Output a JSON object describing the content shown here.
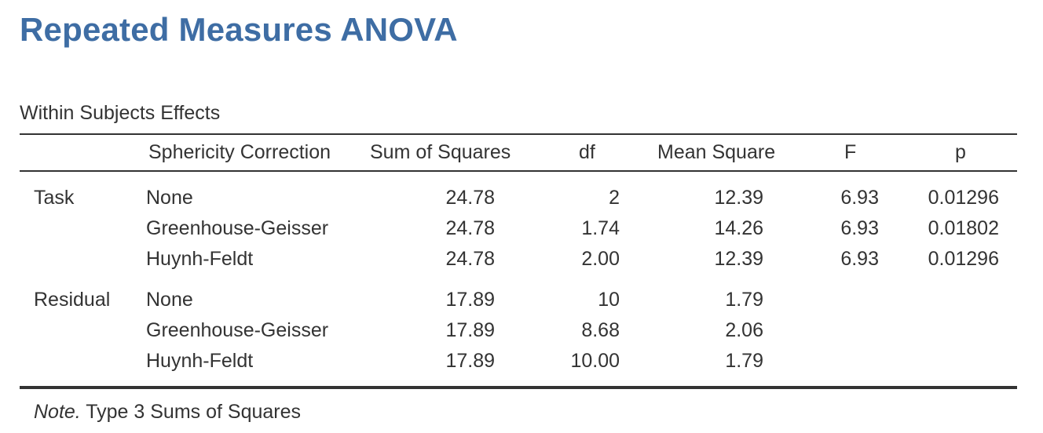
{
  "title": "Repeated Measures ANOVA",
  "table": {
    "caption": "Within Subjects Effects",
    "columns": {
      "term": "",
      "sphericity": "Sphericity Correction",
      "ss": "Sum of Squares",
      "df": "df",
      "ms": "Mean Square",
      "f": "F",
      "p": "p"
    },
    "rows": [
      {
        "term": "Task",
        "sphericity": "None",
        "ss": "24.78",
        "df": "2",
        "ms": "12.39",
        "f": "6.93",
        "p": "0.01296"
      },
      {
        "term": "",
        "sphericity": "Greenhouse-Geisser",
        "ss": "24.78",
        "df": "1.74",
        "ms": "14.26",
        "f": "6.93",
        "p": "0.01802"
      },
      {
        "term": "",
        "sphericity": "Huynh-Feldt",
        "ss": "24.78",
        "df": "2.00",
        "ms": "12.39",
        "f": "6.93",
        "p": "0.01296"
      },
      {
        "term": "Residual",
        "sphericity": "None",
        "ss": "17.89",
        "df": "10",
        "ms": "1.79",
        "f": "",
        "p": ""
      },
      {
        "term": "",
        "sphericity": "Greenhouse-Geisser",
        "ss": "17.89",
        "df": "8.68",
        "ms": "2.06",
        "f": "",
        "p": ""
      },
      {
        "term": "",
        "sphericity": "Huynh-Feldt",
        "ss": "17.89",
        "df": "10.00",
        "ms": "1.79",
        "f": "",
        "p": ""
      }
    ],
    "note": {
      "label": "Note.",
      "text": " Type 3 Sums of Squares"
    }
  },
  "colors": {
    "title": "#3e6da4",
    "text": "#333333",
    "rule": "#333333"
  }
}
